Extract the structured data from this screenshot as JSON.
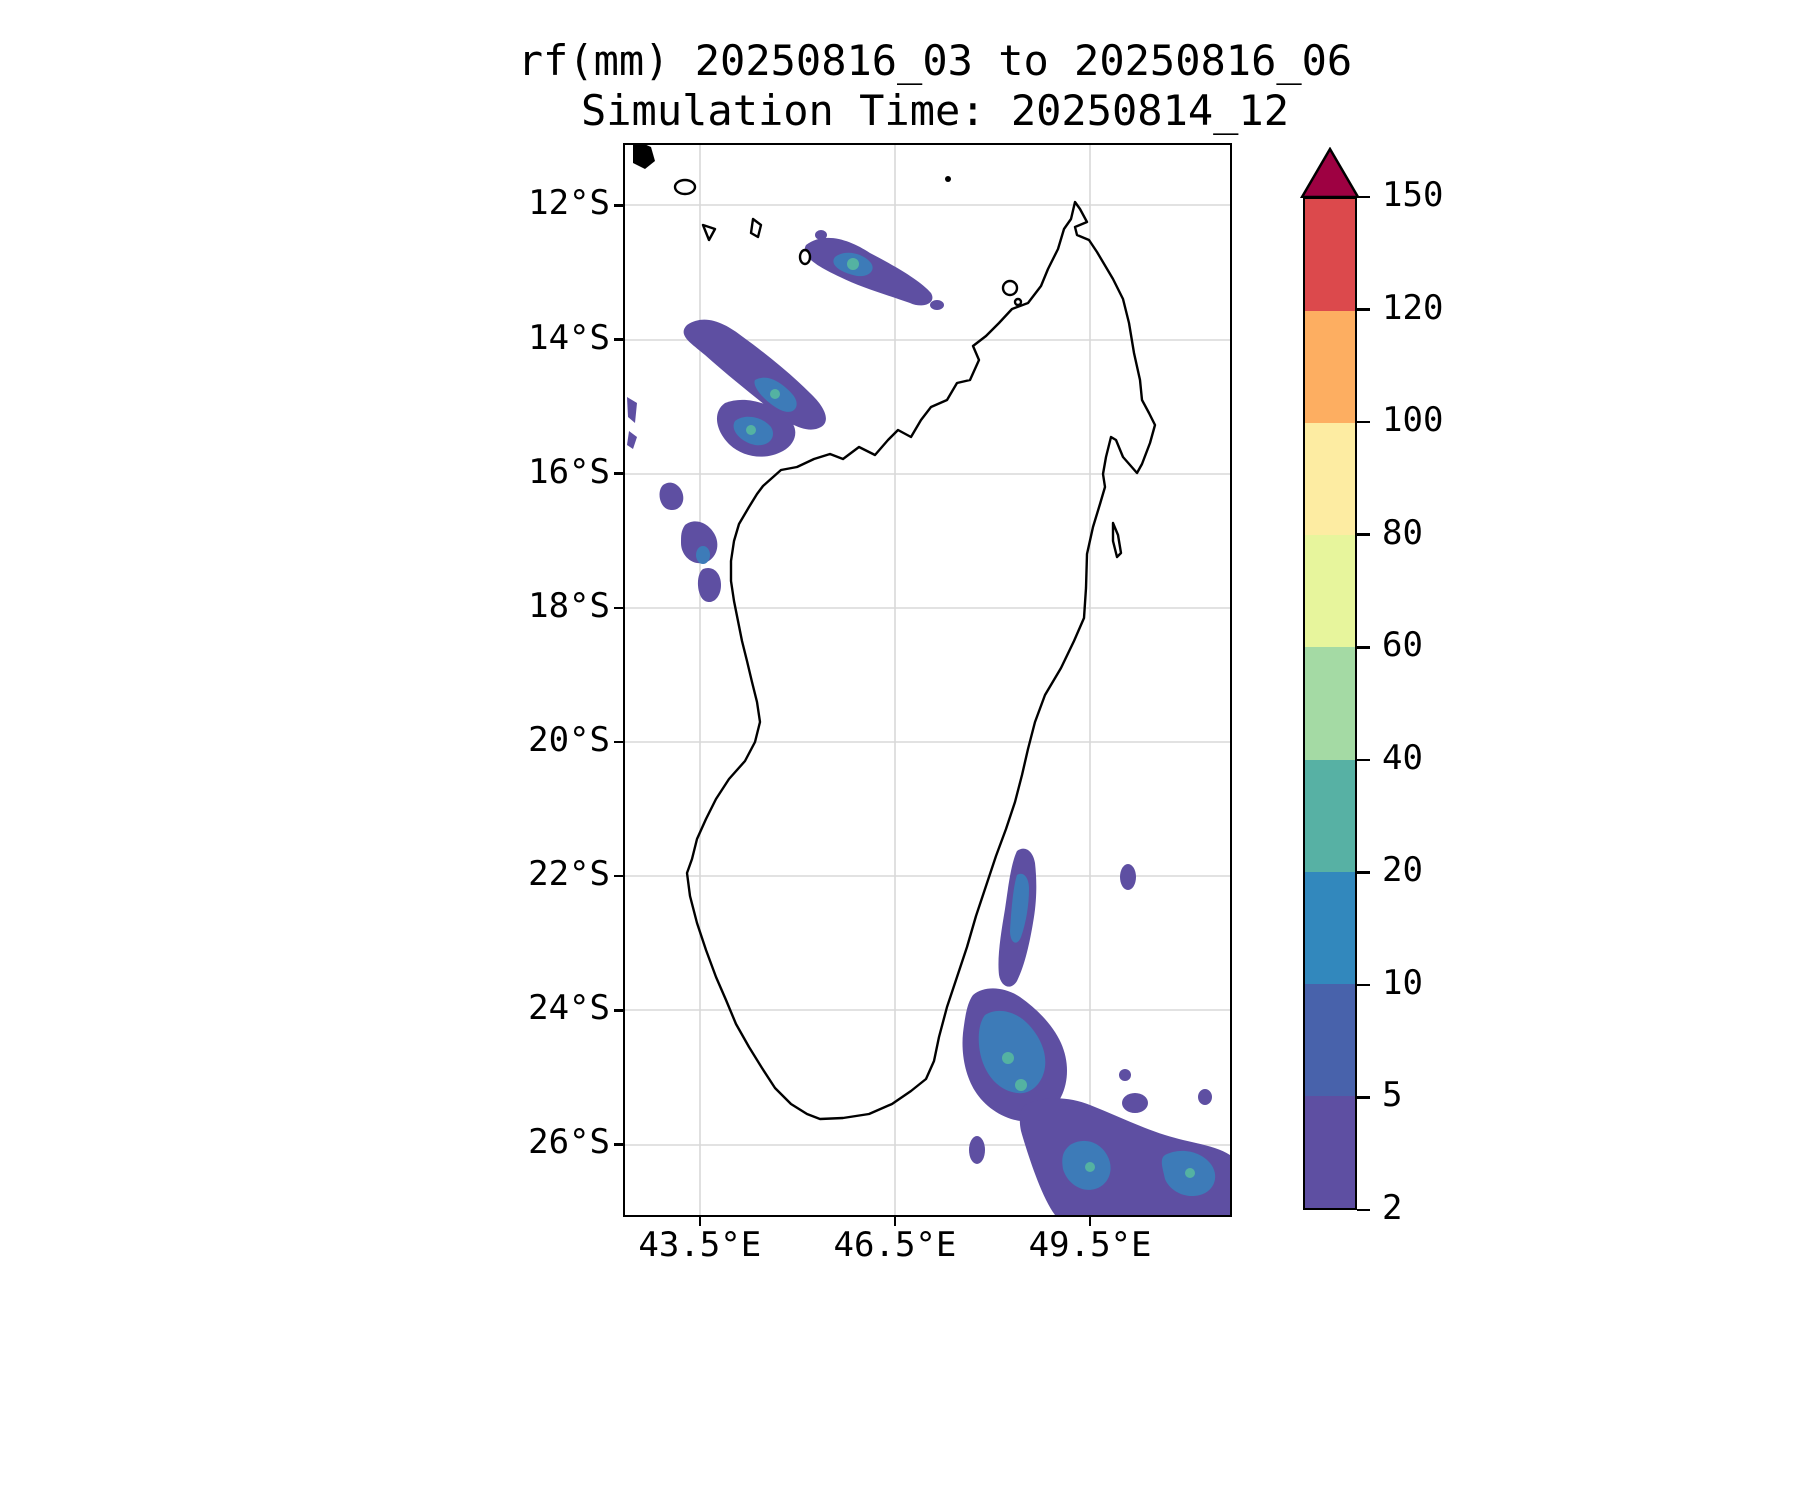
{
  "title": {
    "line1": "rf(mm) 20250816_03 to 20250816_06",
    "line2": "Simulation Time: 20250814_12"
  },
  "axes": {
    "y_ticks": [
      "12°S",
      "14°S",
      "16°S",
      "18°S",
      "20°S",
      "22°S",
      "24°S",
      "26°S"
    ],
    "x_ticks": [
      "43.5°E",
      "46.5°E",
      "49.5°E"
    ]
  },
  "colorbar": {
    "levels": [
      2,
      5,
      10,
      20,
      40,
      60,
      80,
      100,
      120,
      150
    ],
    "tick_labels": [
      "2",
      "5",
      "10",
      "20",
      "40",
      "60",
      "80",
      "100",
      "120",
      "150"
    ],
    "segment_colors_bottom_to_top": [
      "#5e4fa2",
      "#4862ab",
      "#3288bd",
      "#57b1a4",
      "#a4daa4",
      "#e7f59c",
      "#fdeca2",
      "#fdae61",
      "#dc494c"
    ],
    "over_color": "#9e0142"
  },
  "palette": {
    "background": "#ffffff",
    "coastline": "#000000",
    "grid": "#d8d8d8",
    "rain_low": "#5e4fa2",
    "rain_mid": "#3d7bb8",
    "rain_high": "#54b2a2"
  },
  "chart_data": {
    "type": "heatmap",
    "title": "rf(mm) 20250816_03 to 20250816_06",
    "subtitle": "Simulation Time: 20250814_12",
    "variable": "rf",
    "units": "mm",
    "accumulation_window": "20250816_03 to 20250816_06",
    "simulation_time": "20250814_12",
    "region": "Madagascar and surrounding ocean (incl. Comoros islands)",
    "x": {
      "tick_labels": [
        "43.5°E",
        "46.5°E",
        "49.5°E"
      ],
      "range_deg_east": [
        42.3,
        51.7
      ]
    },
    "y": {
      "tick_labels": [
        "12°S",
        "14°S",
        "16°S",
        "18°S",
        "20°S",
        "22°S",
        "24°S",
        "26°S"
      ],
      "range_deg_south": [
        11.1,
        27.1
      ]
    },
    "contour_levels_mm": [
      2,
      5,
      10,
      20,
      40,
      60,
      80,
      100,
      120,
      150
    ],
    "colormap": "Spectral_r filled contours, arrow extend above 150",
    "grid": true,
    "legend_position": "vertical colorbar at right",
    "rain_areas": [
      {
        "name": "Mozambique Channel band northwest of Madagascar",
        "approx_lat": "13.5S-15.6S",
        "approx_lon": "43.3E-45.4E",
        "max_bin_mm": "20-40"
      },
      {
        "name": "Northern offshore band near 13S",
        "approx_lat": "12.6S-13.3S",
        "approx_lon": "45.0E-47.1E",
        "max_bin_mm": "20-40"
      },
      {
        "name": "Small cells off west coast",
        "approx_lat": "15.8S-18.0S",
        "approx_lon": "42.4E-43.7E",
        "max_bin_mm": "5-10"
      },
      {
        "name": "Southeast coastal band",
        "approx_lat": "21.8S-24.0S",
        "approx_lon": "47.6E-48.3E",
        "max_bin_mm": "10-20"
      },
      {
        "name": "Far-southeast rain system",
        "approx_lat": "24.0S-27.0S",
        "approx_lon": "47.4E-51.6E",
        "max_bin_mm": "20-40"
      },
      {
        "name": "Isolated offshore cell east of coast",
        "approx_lat": "21.8S-22.1S",
        "approx_lon": "49.9E-50.2E",
        "max_bin_mm": "2-5"
      }
    ]
  }
}
